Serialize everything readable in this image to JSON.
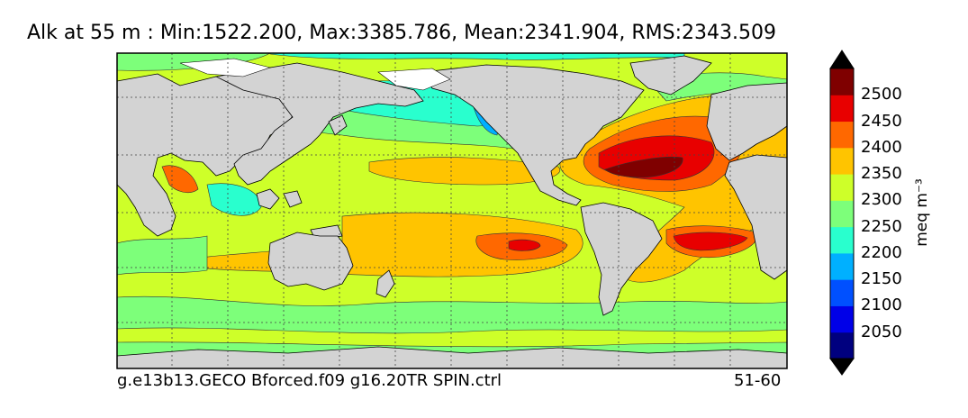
{
  "title": "Alk at 55 m : Min:1522.200, Max:3385.786, Mean:2341.904, RMS:2343.509",
  "footer": {
    "case_name": "g.e13b13.GECO Bforced.f09 g16.20TR SPIN.ctrl",
    "years": "51-60"
  },
  "colorbar": {
    "units": "meq m⁻³",
    "ticks": [
      "2050",
      "2100",
      "2150",
      "2200",
      "2250",
      "2300",
      "2350",
      "2400",
      "2450",
      "2500"
    ],
    "colors": [
      "#00007f",
      "#0000e8",
      "#0050ff",
      "#00b0ff",
      "#29ffce",
      "#7dff7a",
      "#ceff29",
      "#ffc400",
      "#ff6800",
      "#e80000",
      "#7f0000"
    ],
    "extend": "both"
  },
  "colors": {
    "land": "#d3d3d3",
    "ice": "#ffffff",
    "grid": "#444444"
  }
}
